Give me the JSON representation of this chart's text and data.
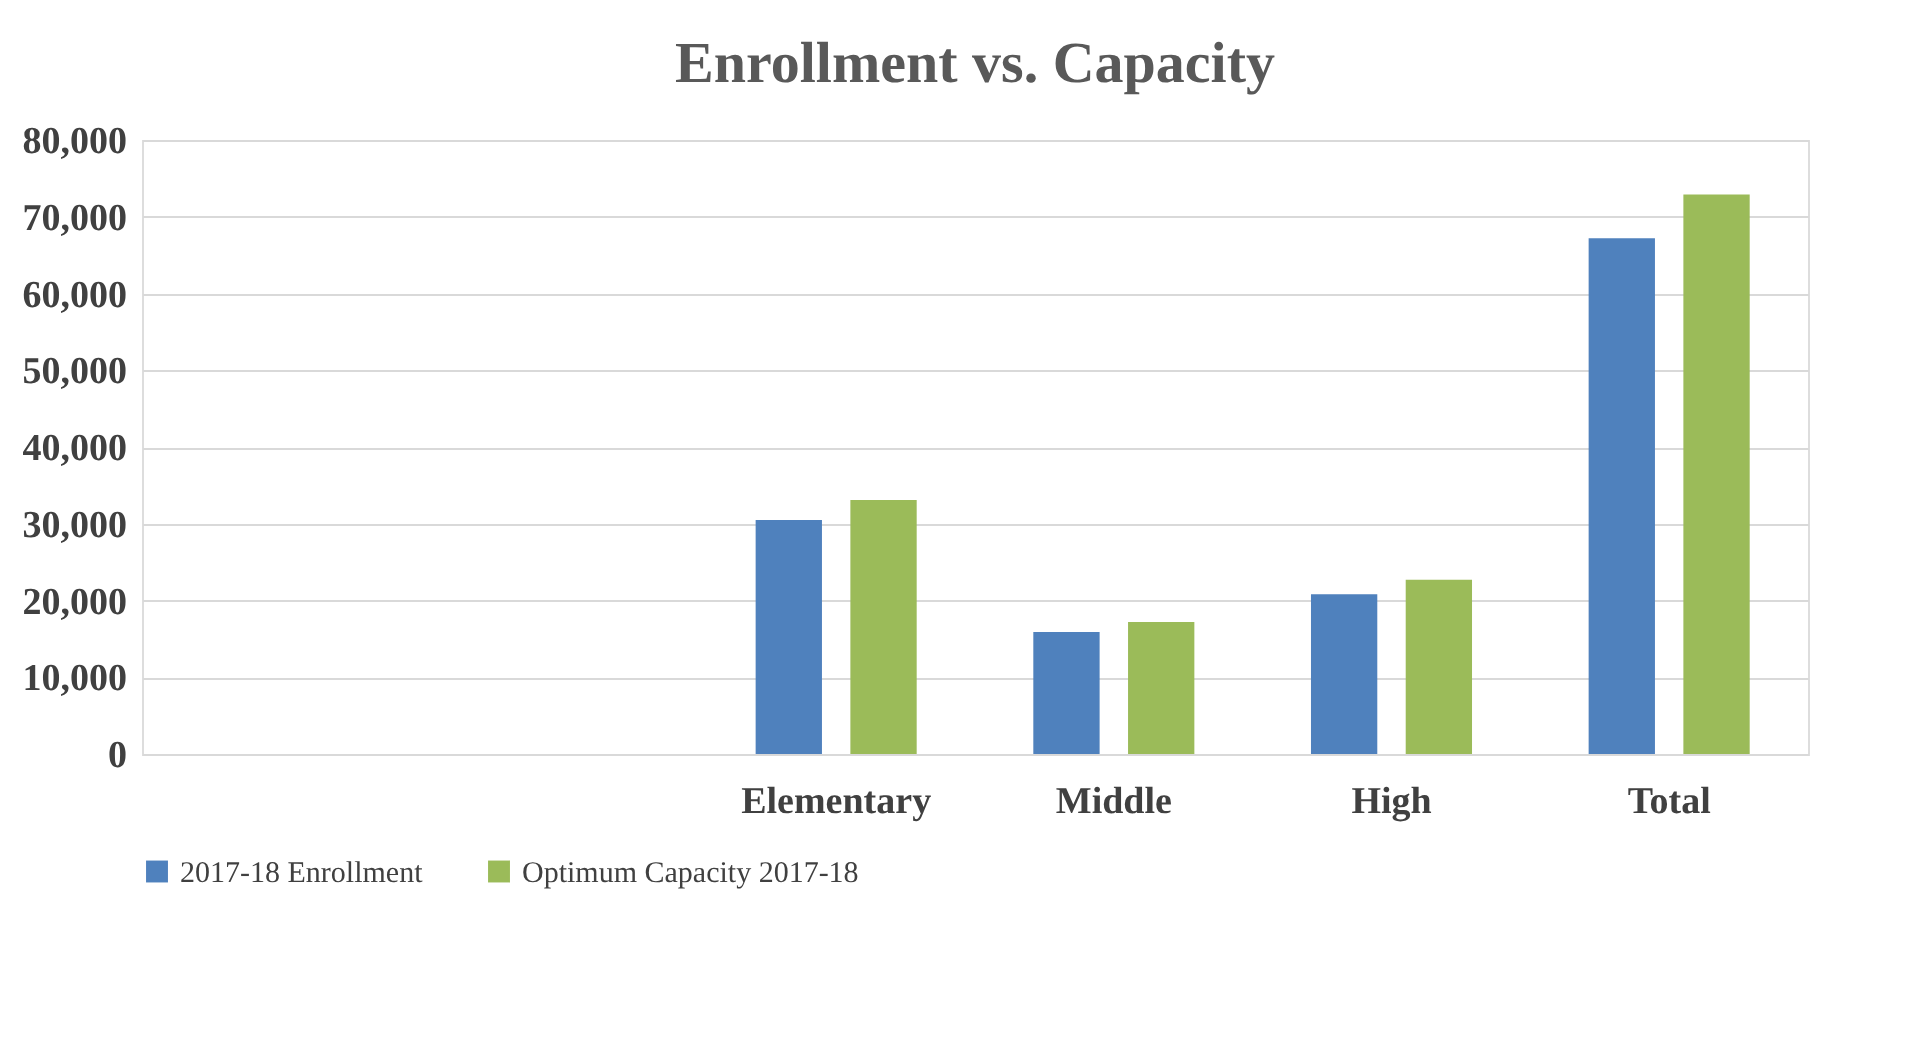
{
  "chart_data": {
    "type": "bar",
    "title": "Enrollment vs. Capacity",
    "categories": [
      null,
      null,
      "Elementary",
      "Middle",
      "High",
      "Total"
    ],
    "series": [
      {
        "name": "2017-18 Enrollment",
        "color": "#4f81bd",
        "values": [
          null,
          null,
          30500,
          15900,
          20800,
          67200
        ]
      },
      {
        "name": "Optimum Capacity 2017-18",
        "color": "#9bbb59",
        "values": [
          null,
          null,
          33100,
          17200,
          22700,
          72900
        ]
      }
    ],
    "ylim": [
      0,
      80000
    ],
    "yticks": [
      0,
      {
        "value": 10000,
        "label": "10,000"
      },
      {
        "value": 20000,
        "label": "20,000"
      },
      {
        "value": 30000,
        "label": "30,000"
      },
      {
        "value": 40000,
        "label": "40,000"
      },
      {
        "value": 50000,
        "label": "50,000"
      },
      {
        "value": 60000,
        "label": "60,000"
      },
      {
        "value": 70000,
        "label": "70,000"
      },
      {
        "value": 80000,
        "label": "80,000"
      }
    ],
    "grid": "y",
    "legend": "bottom"
  }
}
